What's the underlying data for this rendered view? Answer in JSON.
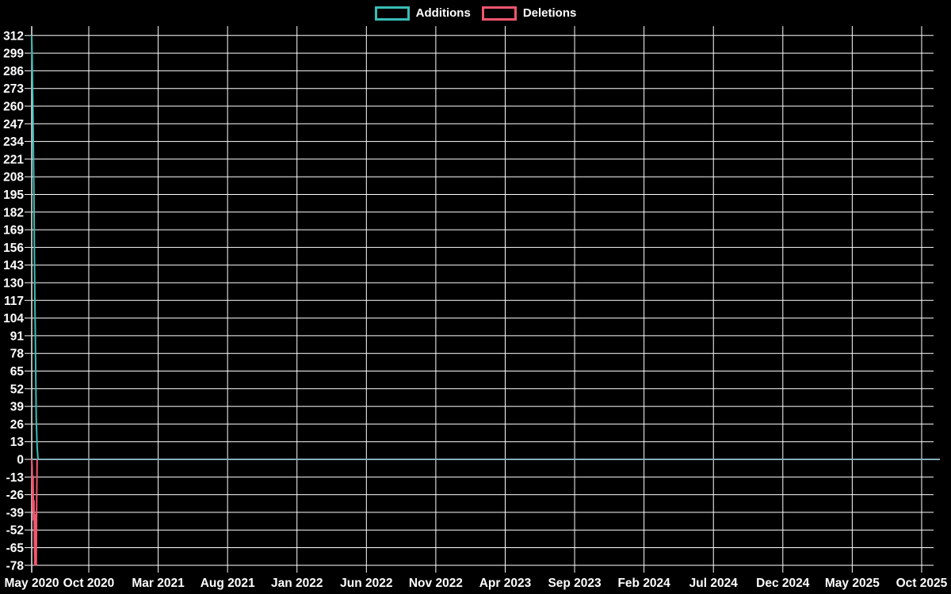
{
  "legend": {
    "items": [
      {
        "label": "Additions",
        "color": "#38bdb5"
      },
      {
        "label": "Deletions",
        "color": "#f4556e"
      }
    ]
  },
  "chart_data": {
    "type": "line",
    "title": "",
    "xlabel": "",
    "ylabel": "",
    "legend_position": "top-center",
    "grid": true,
    "background_color": "#000000",
    "grid_color": "#ffffff",
    "axis_color": "#ffffff",
    "text_color": "#ffffff",
    "zeroline": true,
    "zeroline_color": "#86aeb8",
    "ylim": [
      -78,
      312
    ],
    "y_ticks": [
      312,
      299,
      286,
      273,
      260,
      247,
      234,
      221,
      208,
      195,
      182,
      169,
      156,
      143,
      130,
      117,
      104,
      91,
      78,
      65,
      52,
      39,
      26,
      13,
      0,
      -13,
      -26,
      -39,
      -52,
      -65,
      -78
    ],
    "x_tick_labels": [
      "May 2020",
      "Oct 2020",
      "Mar 2021",
      "Aug 2021",
      "Jan 2022",
      "Jun 2022",
      "Nov 2022",
      "Apr 2023",
      "Sep 2023",
      "Feb 2024",
      "Jul 2024",
      "Dec 2024",
      "May 2025",
      "Oct 2025"
    ],
    "x_axis_range": [
      "2020-05-10",
      "2025-11-10"
    ],
    "series": [
      {
        "name": "Additions",
        "color": "#38bdb5",
        "points": [
          [
            "2020-05-10",
            312
          ],
          [
            "2020-05-11",
            297
          ],
          [
            "2020-05-12",
            273
          ],
          [
            "2020-05-13",
            250
          ],
          [
            "2020-05-14",
            221
          ],
          [
            "2020-05-15",
            193
          ],
          [
            "2020-05-16",
            150
          ],
          [
            "2020-05-17",
            117
          ],
          [
            "2020-05-18",
            92
          ],
          [
            "2020-05-19",
            60
          ],
          [
            "2020-05-20",
            30
          ],
          [
            "2020-05-22",
            9
          ],
          [
            "2020-05-24",
            0
          ]
        ]
      },
      {
        "name": "Deletions",
        "color": "#f4556e",
        "points": [
          [
            "2020-05-10",
            0
          ],
          [
            "2020-05-11",
            -5
          ],
          [
            "2020-05-12",
            -38
          ],
          [
            "2020-05-13",
            -12
          ],
          [
            "2020-05-14",
            -45
          ],
          [
            "2020-05-15",
            -30
          ],
          [
            "2020-05-16",
            -62
          ],
          [
            "2020-05-17",
            -78
          ],
          [
            "2020-05-18",
            -40
          ],
          [
            "2020-05-19",
            -70
          ],
          [
            "2020-05-20",
            -78
          ],
          [
            "2020-05-21",
            -30
          ],
          [
            "2020-05-22",
            0
          ]
        ]
      }
    ]
  }
}
